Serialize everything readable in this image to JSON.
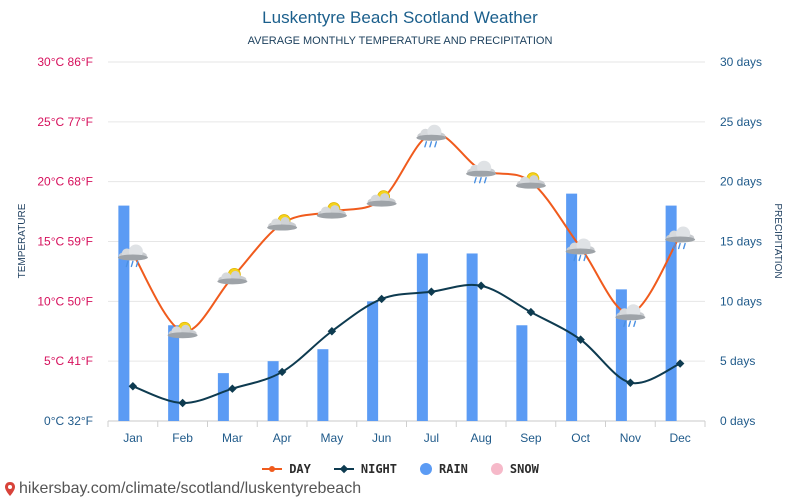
{
  "chart_data": {
    "type": "line",
    "title": "Luskentyre Beach Scotland Weather",
    "subtitle": "AVERAGE MONTHLY TEMPERATURE AND PRECIPITATION",
    "ylabel_left": "TEMPERATURE",
    "ylabel_right": "PRECIPITATION",
    "categories": [
      "Jan",
      "Feb",
      "Mar",
      "Apr",
      "May",
      "Jun",
      "Jul",
      "Aug",
      "Sep",
      "Oct",
      "Nov",
      "Dec"
    ],
    "ylim_left": [
      0,
      30
    ],
    "ylim_right": [
      0,
      30
    ],
    "left_ticks": [
      "0°C 32°F",
      "5°C 41°F",
      "10°C 50°F",
      "15°C 59°F",
      "20°C 68°F",
      "25°C 77°F",
      "30°C 86°F"
    ],
    "right_ticks": [
      "0 days",
      "5 days",
      "10 days",
      "15 days",
      "20 days",
      "25 days",
      "30 days"
    ],
    "series": [
      {
        "name": "DAY",
        "type": "line",
        "axis": "left",
        "color": "#f05b1d",
        "values": [
          14,
          7.5,
          12,
          16.5,
          17.5,
          18.5,
          24,
          21,
          20,
          14.5,
          9,
          15.5
        ]
      },
      {
        "name": "NIGHT",
        "type": "line",
        "axis": "left",
        "color": "#0e3b50",
        "values": [
          2.9,
          1.5,
          2.7,
          4.1,
          7.5,
          10.2,
          10.8,
          11.3,
          9.1,
          6.8,
          3.2,
          4.8
        ]
      },
      {
        "name": "RAIN",
        "type": "bar",
        "axis": "right",
        "color": "#5b9bf4",
        "values": [
          18,
          8,
          4,
          5,
          6,
          10,
          14,
          14,
          8,
          19,
          11,
          18
        ]
      },
      {
        "name": "SNOW",
        "type": "bar",
        "axis": "right",
        "color": "#f6b9c9",
        "values": [
          0,
          0,
          0,
          0,
          0,
          0,
          0,
          0,
          0,
          0,
          0,
          0
        ]
      }
    ],
    "weather_icons": [
      "cloud-rain-icon",
      "cloud-sun-icon",
      "cloud-sun-icon",
      "cloud-sun-icon",
      "cloud-sun-icon",
      "cloud-sun-icon",
      "cloud-rain-icon",
      "cloud-rain-icon",
      "cloud-sun-icon",
      "cloud-rain-icon",
      "cloud-rain-icon",
      "cloud-rain-icon"
    ],
    "grid": true,
    "legend_position": "bottom"
  },
  "footer": {
    "text": "hikersbay.com/climate/scotland/luskentyrebeach"
  },
  "colors": {
    "left_axis_text": "#d6105c",
    "right_axis_text": "#1f5a8a",
    "grid": "#e6e6e6",
    "axis_label": "#1f3f5f"
  }
}
